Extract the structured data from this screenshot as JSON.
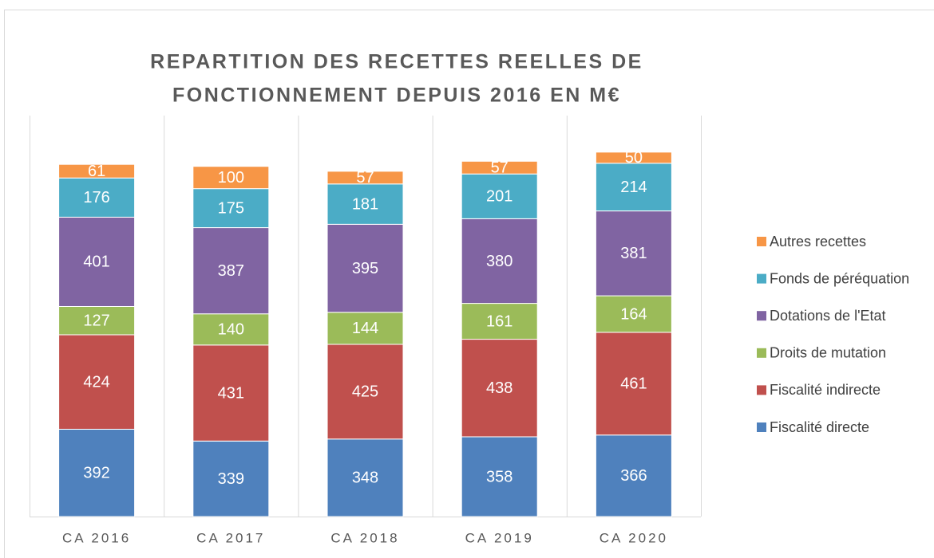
{
  "chart_data": {
    "type": "stacked-bar",
    "title": [
      "REPARTITION DES RECETTES REELLES DE",
      "FONCTIONNEMENT DEPUIS 2016 EN M€"
    ],
    "categories": [
      "CA 2016",
      "CA 2017",
      "CA 2018",
      "CA 2019",
      "CA 2020"
    ],
    "ylim": [
      0,
      1800
    ],
    "series": [
      {
        "name": "Fiscalité directe",
        "color": "#4f81bd",
        "values": [
          392,
          339,
          348,
          358,
          366
        ]
      },
      {
        "name": "Fiscalité indirecte",
        "color": "#c0504d",
        "values": [
          424,
          431,
          425,
          438,
          461
        ]
      },
      {
        "name": "Droits de mutation",
        "color": "#9bbb59",
        "values": [
          127,
          140,
          144,
          161,
          164
        ]
      },
      {
        "name": "Dotations de l'Etat",
        "color": "#8064a2",
        "values": [
          401,
          387,
          395,
          380,
          381
        ]
      },
      {
        "name": "Fonds de péréquation",
        "color": "#4bacc6",
        "values": [
          176,
          175,
          181,
          201,
          214
        ]
      },
      {
        "name": "Autres recettes",
        "color": "#f79646",
        "values": [
          61,
          100,
          57,
          57,
          50
        ]
      }
    ],
    "legend": "right"
  }
}
